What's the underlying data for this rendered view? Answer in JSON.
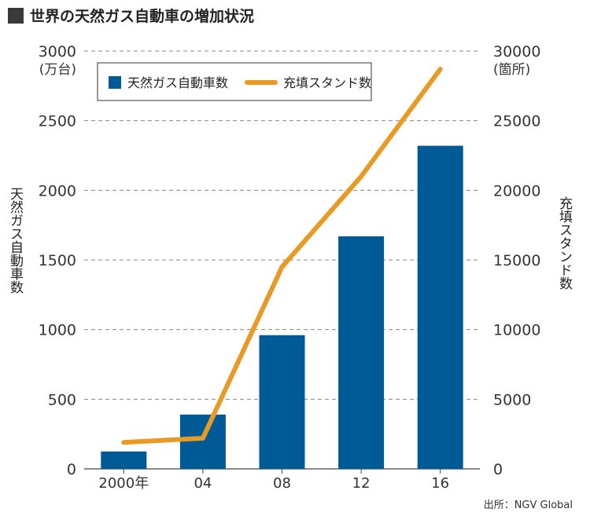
{
  "title": "世界の天然ガス自動車の増加状況",
  "source": "出所：NGV Global",
  "chart_data": {
    "type": "bar",
    "categories": [
      "2000年",
      "04",
      "08",
      "12",
      "16"
    ],
    "series": [
      {
        "name": "天然ガス自動車数",
        "type": "bar",
        "axis": "left",
        "color": "#005a96",
        "values": [
          125,
          390,
          960,
          1670,
          2320
        ]
      },
      {
        "name": "充填スタンド数",
        "type": "line",
        "axis": "right",
        "color": "#e89a25",
        "values": [
          1900,
          2200,
          14500,
          21000,
          28700
        ]
      }
    ],
    "y_left": {
      "label": "天然ガス自動車数",
      "unit": "(万台)",
      "lim": [
        0,
        3000
      ],
      "ticks": [
        0,
        500,
        1000,
        1500,
        2000,
        2500,
        3000
      ]
    },
    "y_right": {
      "label": "充填スタンド数",
      "unit": "(箇所)",
      "lim": [
        0,
        30000
      ],
      "ticks": [
        0,
        5000,
        10000,
        15000,
        20000,
        25000,
        30000
      ]
    },
    "grid": "horizontal-dashed",
    "legend": "top-left"
  }
}
